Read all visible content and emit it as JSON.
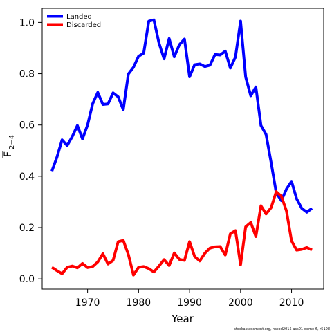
{
  "chart_data": {
    "type": "line",
    "xlabel": "Year",
    "ylabel": {
      "main": "F",
      "sub": "2−4"
    },
    "xlim": [
      1961.1,
      2016.3
    ],
    "ylim": [
      -0.04,
      1.055
    ],
    "x_ticks": [
      1970,
      1980,
      1990,
      2000,
      2010
    ],
    "y_ticks": [
      0.0,
      0.2,
      0.4,
      0.6,
      0.8,
      1.0
    ],
    "y_tick_labels": [
      "0.0",
      "0.2",
      "0.4",
      "0.6",
      "0.8",
      "1.0"
    ],
    "grid": false,
    "legend_placement": "top-left",
    "x": [
      1963,
      1964,
      1965,
      1966,
      1967,
      1968,
      1969,
      1970,
      1971,
      1972,
      1973,
      1974,
      1975,
      1976,
      1977,
      1978,
      1979,
      1980,
      1981,
      1982,
      1983,
      1984,
      1985,
      1986,
      1987,
      1988,
      1989,
      1990,
      1991,
      1992,
      1993,
      1994,
      1995,
      1996,
      1997,
      1998,
      1999,
      2000,
      2001,
      2002,
      2003,
      2004,
      2005,
      2006,
      2007,
      2008,
      2009,
      2010,
      2011,
      2012,
      2013,
      2014
    ],
    "series": [
      {
        "name": "Landed",
        "color": "#0000ff",
        "values": [
          0.42,
          0.475,
          0.542,
          0.52,
          0.555,
          0.598,
          0.546,
          0.6,
          0.683,
          0.727,
          0.68,
          0.682,
          0.725,
          0.71,
          0.66,
          0.799,
          0.825,
          0.868,
          0.88,
          1.005,
          1.01,
          0.92,
          0.858,
          0.937,
          0.866,
          0.913,
          0.935,
          0.788,
          0.835,
          0.838,
          0.828,
          0.833,
          0.875,
          0.873,
          0.888,
          0.822,
          0.865,
          1.005,
          0.787,
          0.714,
          0.748,
          0.598,
          0.563,
          0.453,
          0.335,
          0.305,
          0.35,
          0.38,
          0.312,
          0.275,
          0.26,
          0.275
        ]
      },
      {
        "name": "Discarded",
        "color": "#ff0000",
        "values": [
          0.045,
          0.032,
          0.02,
          0.045,
          0.05,
          0.043,
          0.06,
          0.044,
          0.048,
          0.066,
          0.098,
          0.058,
          0.072,
          0.145,
          0.15,
          0.095,
          0.015,
          0.045,
          0.048,
          0.04,
          0.027,
          0.05,
          0.075,
          0.052,
          0.101,
          0.076,
          0.072,
          0.145,
          0.087,
          0.07,
          0.1,
          0.12,
          0.125,
          0.126,
          0.093,
          0.176,
          0.188,
          0.055,
          0.203,
          0.22,
          0.165,
          0.285,
          0.253,
          0.278,
          0.34,
          0.322,
          0.265,
          0.148,
          0.112,
          0.115,
          0.122,
          0.113
        ]
      }
    ]
  },
  "credit": "stockassessment.org, nscod2015-ass01-dome-6, r5108"
}
